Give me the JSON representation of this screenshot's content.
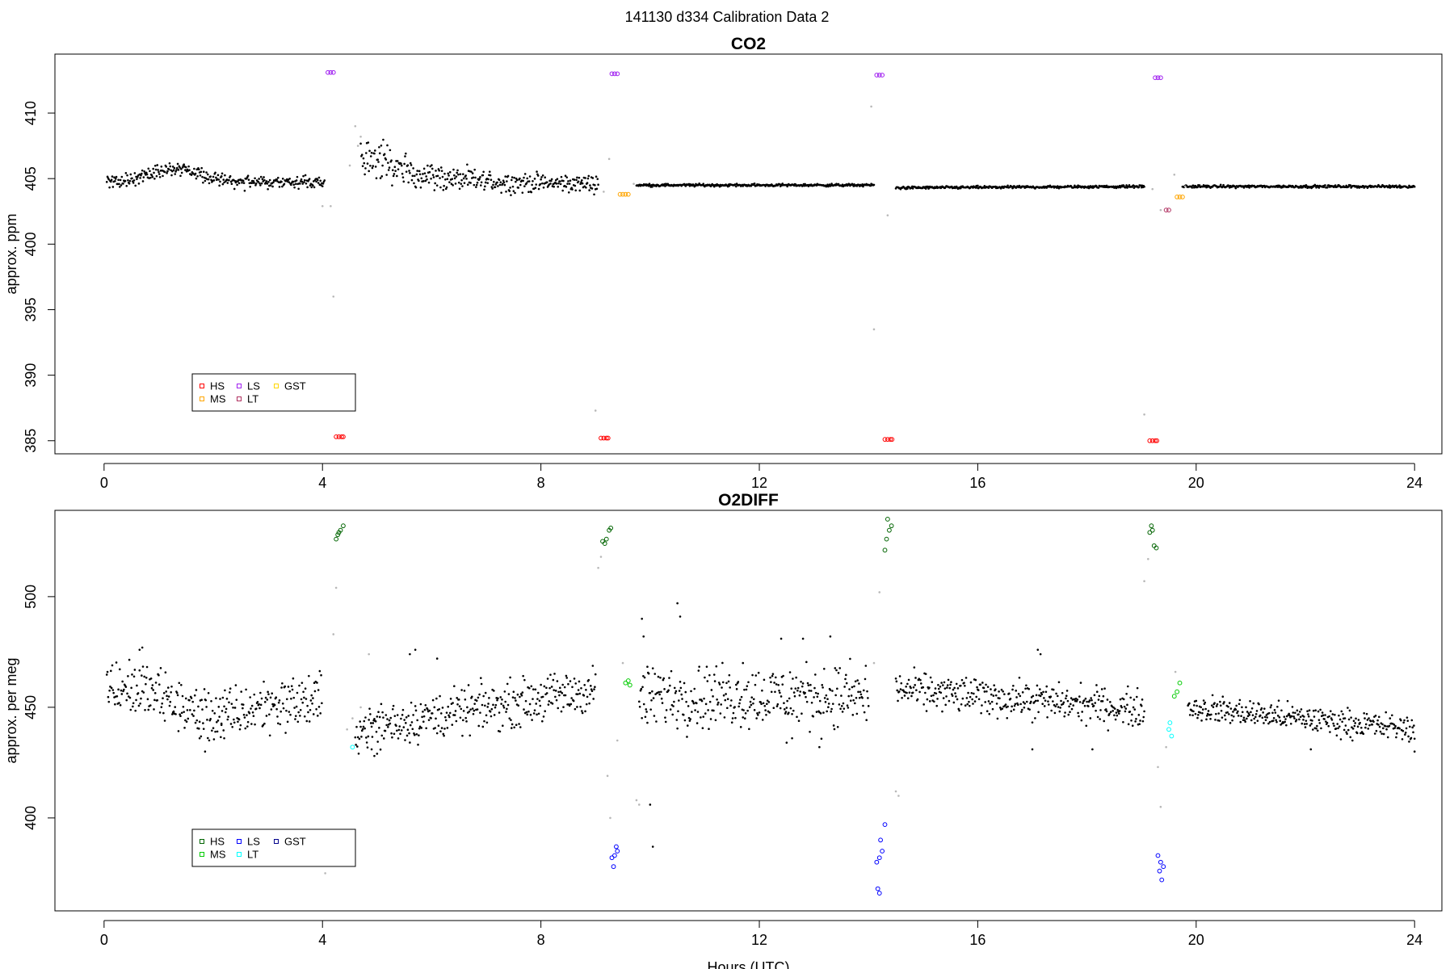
{
  "figure_title": "141130   d334   Calibration Data 2",
  "chart_data": [
    {
      "type": "scatter",
      "title": "CO2",
      "xlabel": "",
      "ylabel": "approx. ppm",
      "xlim": [
        -0.9,
        24.5
      ],
      "ylim": [
        384,
        414.5
      ],
      "x_ticks": [
        0,
        4,
        8,
        12,
        16,
        20,
        24
      ],
      "y_ticks": [
        385,
        390,
        395,
        400,
        405,
        410
      ],
      "grid": false,
      "legend_position": "bottom-left",
      "legend": [
        {
          "label": "HS",
          "color": "#ff0000"
        },
        {
          "label": "MS",
          "color": "#ffa500"
        },
        {
          "label": "LS",
          "color": "#a020f0"
        },
        {
          "label": "LT",
          "color": "#b03060"
        },
        {
          "label": "GST",
          "color": "#ffd700"
        }
      ],
      "baseline_segments": [
        {
          "x_start": 0.05,
          "x_end": 4.05,
          "y_start": 404.8,
          "y_end": 404.7,
          "bump_center": 1.3,
          "bump_height": 1.0,
          "scatter": 0.25,
          "color": "#000000"
        },
        {
          "x_start": 4.7,
          "x_end": 9.05,
          "y_start": 404.6,
          "y_end": 404.6,
          "decay_peak": 2.5,
          "scatter": 0.3,
          "color": "#000000"
        },
        {
          "x_start": 9.75,
          "x_end": 14.1,
          "y_start": 404.5,
          "y_end": 404.5,
          "scatter": 0.05,
          "color": "#000000"
        },
        {
          "x_start": 14.5,
          "x_end": 19.05,
          "y_start": 404.3,
          "y_end": 404.4,
          "scatter": 0.05,
          "color": "#000000"
        },
        {
          "x_start": 19.75,
          "x_end": 24.0,
          "y_start": 404.4,
          "y_end": 404.4,
          "scatter": 0.05,
          "color": "#000000"
        }
      ],
      "calibration_series": [
        {
          "name": "HS",
          "color": "#ff0000",
          "points": [
            [
              4.25,
              385.3
            ],
            [
              4.3,
              385.3
            ],
            [
              4.35,
              385.3
            ],
            [
              4.38,
              385.3
            ],
            [
              9.1,
              385.2
            ],
            [
              9.15,
              385.2
            ],
            [
              9.2,
              385.2
            ],
            [
              9.23,
              385.2
            ],
            [
              14.3,
              385.1
            ],
            [
              14.35,
              385.1
            ],
            [
              14.4,
              385.1
            ],
            [
              14.43,
              385.1
            ],
            [
              19.15,
              385.0
            ],
            [
              19.2,
              385.0
            ],
            [
              19.25,
              385.0
            ],
            [
              19.28,
              385.0
            ]
          ]
        },
        {
          "name": "LS",
          "color": "#a020f0",
          "points": [
            [
              4.1,
              413.1
            ],
            [
              4.15,
              413.1
            ],
            [
              4.2,
              413.1
            ],
            [
              9.3,
              413.0
            ],
            [
              9.35,
              413.0
            ],
            [
              9.4,
              413.0
            ],
            [
              14.15,
              412.9
            ],
            [
              14.2,
              412.9
            ],
            [
              14.25,
              412.9
            ],
            [
              19.25,
              412.7
            ],
            [
              19.3,
              412.7
            ],
            [
              19.35,
              412.7
            ]
          ]
        },
        {
          "name": "MS",
          "color": "#ffa500",
          "points": [
            [
              9.45,
              403.8
            ],
            [
              9.5,
              403.8
            ],
            [
              9.55,
              403.8
            ],
            [
              9.6,
              403.8
            ],
            [
              19.65,
              403.6
            ],
            [
              19.7,
              403.6
            ],
            [
              19.75,
              403.6
            ]
          ]
        },
        {
          "name": "LT",
          "color": "#b03060",
          "points": [
            [
              19.45,
              402.6
            ],
            [
              19.5,
              402.6
            ]
          ]
        }
      ],
      "transition_points": [
        [
          4.0,
          402.9
        ],
        [
          4.15,
          402.9
        ],
        [
          4.2,
          396.0
        ],
        [
          4.5,
          406.0
        ],
        [
          4.6,
          409.0
        ],
        [
          4.65,
          407.5
        ],
        [
          4.7,
          408.2
        ],
        [
          9.0,
          387.3
        ],
        [
          9.15,
          404.0
        ],
        [
          9.25,
          406.5
        ],
        [
          9.7,
          404.6
        ],
        [
          14.05,
          410.5
        ],
        [
          14.1,
          393.5
        ],
        [
          14.35,
          402.2
        ],
        [
          19.05,
          387.0
        ],
        [
          19.2,
          404.2
        ],
        [
          19.35,
          402.6
        ],
        [
          19.6,
          405.3
        ],
        [
          19.8,
          404.4
        ]
      ]
    },
    {
      "type": "scatter",
      "title": "O2DIFF",
      "xlabel": "Hours (UTC)",
      "ylabel": "approx. per meg",
      "xlim": [
        -0.9,
        24.5
      ],
      "ylim": [
        358,
        539
      ],
      "x_ticks": [
        0,
        4,
        8,
        12,
        16,
        20,
        24
      ],
      "y_ticks": [
        400,
        450,
        500
      ],
      "grid": false,
      "legend_position": "bottom-left",
      "legend": [
        {
          "label": "HS",
          "color": "#006400"
        },
        {
          "label": "MS",
          "color": "#00cc00"
        },
        {
          "label": "LS",
          "color": "#0000ff"
        },
        {
          "label": "LT",
          "color": "#00ffff"
        },
        {
          "label": "GST",
          "color": "#00008b"
        }
      ],
      "baseline_segments": [
        {
          "x_start": 0.05,
          "x_end": 4.0,
          "y_start": 460,
          "y_end": 452,
          "dip_center": 2.0,
          "dip_depth": 10,
          "scatter": 6,
          "color": "#000000"
        },
        {
          "x_start": 4.6,
          "x_end": 9.0,
          "y_start": 440,
          "y_end": 458,
          "scatter": 5,
          "color": "#000000"
        },
        {
          "x_start": 9.8,
          "x_end": 14.0,
          "y_start": 455,
          "y_end": 455,
          "scatter": 7,
          "color": "#000000"
        },
        {
          "x_start": 14.5,
          "x_end": 19.05,
          "y_start": 458,
          "y_end": 449,
          "scatter": 4,
          "color": "#000000"
        },
        {
          "x_start": 19.85,
          "x_end": 24.0,
          "y_start": 450,
          "y_end": 440,
          "scatter": 3,
          "color": "#000000"
        }
      ],
      "calibration_series": [
        {
          "name": "HS",
          "color": "#006400",
          "points": [
            [
              4.25,
              526
            ],
            [
              4.28,
              528
            ],
            [
              4.3,
              529
            ],
            [
              4.33,
              530
            ],
            [
              4.38,
              532
            ],
            [
              9.13,
              525
            ],
            [
              9.17,
              524
            ],
            [
              9.2,
              526
            ],
            [
              9.25,
              530
            ],
            [
              9.28,
              531
            ],
            [
              14.3,
              521
            ],
            [
              14.33,
              526
            ],
            [
              14.38,
              530
            ],
            [
              14.42,
              532
            ],
            [
              14.35,
              535
            ],
            [
              19.15,
              529
            ],
            [
              19.18,
              532
            ],
            [
              19.23,
              523
            ],
            [
              19.27,
              522
            ],
            [
              19.2,
              530
            ]
          ]
        },
        {
          "name": "MS",
          "color": "#00cc00",
          "points": [
            [
              9.55,
              461
            ],
            [
              9.6,
              462
            ],
            [
              9.63,
              460
            ],
            [
              19.6,
              455
            ],
            [
              19.65,
              457
            ],
            [
              19.7,
              461
            ]
          ]
        },
        {
          "name": "LS",
          "color": "#0000ff",
          "points": [
            [
              9.3,
              382
            ],
            [
              9.35,
              383
            ],
            [
              9.4,
              385
            ],
            [
              9.33,
              378
            ],
            [
              9.38,
              387
            ],
            [
              14.15,
              380
            ],
            [
              14.2,
              382
            ],
            [
              14.25,
              385
            ],
            [
              14.3,
              397
            ],
            [
              14.22,
              390
            ],
            [
              14.17,
              368
            ],
            [
              14.2,
              366
            ],
            [
              19.3,
              383
            ],
            [
              19.35,
              380
            ],
            [
              19.4,
              378
            ],
            [
              19.37,
              372
            ],
            [
              19.33,
              376
            ]
          ]
        },
        {
          "name": "LT",
          "color": "#00ffff",
          "points": [
            [
              4.55,
              432
            ],
            [
              19.5,
              440
            ],
            [
              19.55,
              437
            ],
            [
              19.52,
              443
            ]
          ]
        }
      ],
      "transition_points": [
        [
          4.05,
          375
        ],
        [
          4.2,
          483
        ],
        [
          4.25,
          504
        ],
        [
          4.45,
          440
        ],
        [
          4.55,
          445
        ],
        [
          4.7,
          450
        ],
        [
          4.85,
          474
        ],
        [
          9.05,
          513
        ],
        [
          9.1,
          518
        ],
        [
          9.22,
          419
        ],
        [
          9.27,
          400
        ],
        [
          9.4,
          435
        ],
        [
          9.5,
          470
        ],
        [
          9.75,
          408
        ],
        [
          9.8,
          406
        ],
        [
          14.1,
          470
        ],
        [
          14.2,
          502
        ],
        [
          14.5,
          412
        ],
        [
          14.55,
          410
        ],
        [
          19.05,
          507
        ],
        [
          19.12,
          517
        ],
        [
          19.3,
          423
        ],
        [
          19.35,
          405
        ],
        [
          19.45,
          432
        ],
        [
          19.62,
          466
        ]
      ],
      "outlier_points": [
        [
          0.65,
          476
        ],
        [
          0.7,
          477
        ],
        [
          1.75,
          436
        ],
        [
          1.85,
          430
        ],
        [
          2.15,
          442
        ],
        [
          2.2,
          436
        ],
        [
          4.9,
          431
        ],
        [
          4.95,
          428
        ],
        [
          5.0,
          429
        ],
        [
          5.6,
          474
        ],
        [
          5.7,
          476
        ],
        [
          6.1,
          472
        ],
        [
          9.85,
          490
        ],
        [
          9.88,
          482
        ],
        [
          9.95,
          443
        ],
        [
          10.0,
          406
        ],
        [
          10.05,
          387
        ],
        [
          10.5,
          497
        ],
        [
          10.55,
          491
        ],
        [
          11.7,
          470
        ],
        [
          12.4,
          481
        ],
        [
          12.5,
          434
        ],
        [
          12.8,
          481
        ],
        [
          12.6,
          436
        ],
        [
          13.3,
          482
        ],
        [
          13.1,
          432
        ],
        [
          17.0,
          431
        ],
        [
          17.1,
          476
        ],
        [
          17.15,
          474
        ],
        [
          18.1,
          431
        ],
        [
          22.1,
          431
        ],
        [
          24.0,
          430
        ]
      ]
    }
  ]
}
